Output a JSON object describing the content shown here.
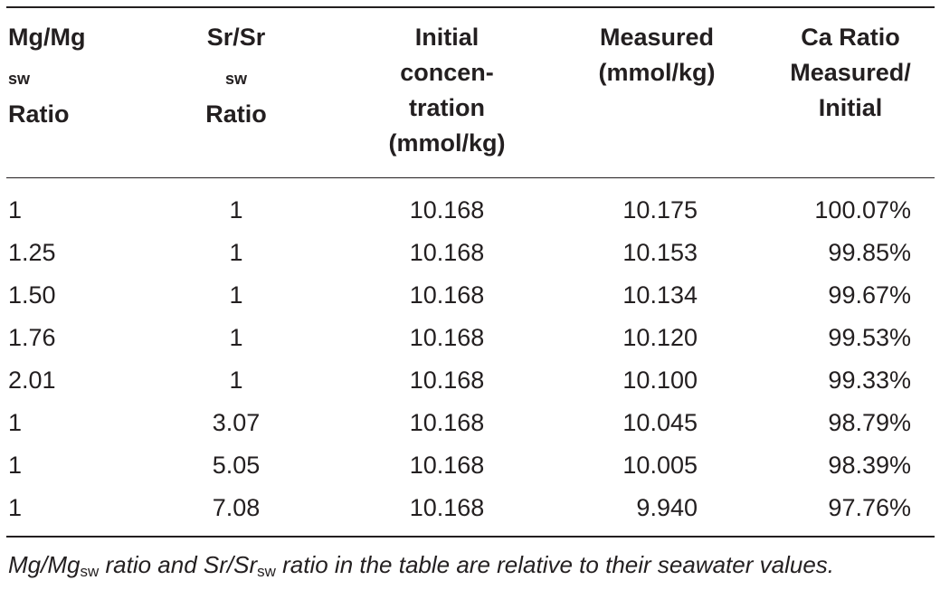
{
  "table": {
    "headers": {
      "col1": {
        "line1_main": "Mg/Mg",
        "line1_sub": "sw",
        "line2": "Ratio"
      },
      "col2": {
        "line1_main": "Sr/Sr",
        "line1_sub": "sw",
        "line2": "Ratio"
      },
      "col3": {
        "line1": "Initial",
        "line2": "concen-",
        "line3": "tration",
        "line4": "(mmol/kg)"
      },
      "col4": {
        "line1": "Measured",
        "line2": "(mmol/kg)"
      },
      "col5": {
        "line1": "Ca Ratio",
        "line2": "Measured/",
        "line3": "Initial"
      }
    },
    "rows": [
      {
        "mg": "1",
        "sr": "1",
        "initial": "10.168",
        "measured": "10.175",
        "ratio": "100.07%"
      },
      {
        "mg": "1.25",
        "sr": "1",
        "initial": "10.168",
        "measured": "10.153",
        "ratio": "99.85%"
      },
      {
        "mg": "1.50",
        "sr": "1",
        "initial": "10.168",
        "measured": "10.134",
        "ratio": "99.67%"
      },
      {
        "mg": "1.76",
        "sr": "1",
        "initial": "10.168",
        "measured": "10.120",
        "ratio": "99.53%"
      },
      {
        "mg": "2.01",
        "sr": "1",
        "initial": "10.168",
        "measured": "10.100",
        "ratio": "99.33%"
      },
      {
        "mg": "1",
        "sr": "3.07",
        "initial": "10.168",
        "measured": "10.045",
        "ratio": "98.79%"
      },
      {
        "mg": "1",
        "sr": "5.05",
        "initial": "10.168",
        "measured": "10.005",
        "ratio": "98.39%"
      },
      {
        "mg": "1",
        "sr": "7.08",
        "initial": "10.168",
        "measured": "9.940",
        "ratio": "97.76%"
      }
    ]
  },
  "footnote": {
    "part1": "Mg/Mg",
    "sub1": "sw",
    "part2": " ratio and Sr/Sr",
    "sub2": "sw",
    "part3": " ratio in the table are relative to their seawater values."
  }
}
